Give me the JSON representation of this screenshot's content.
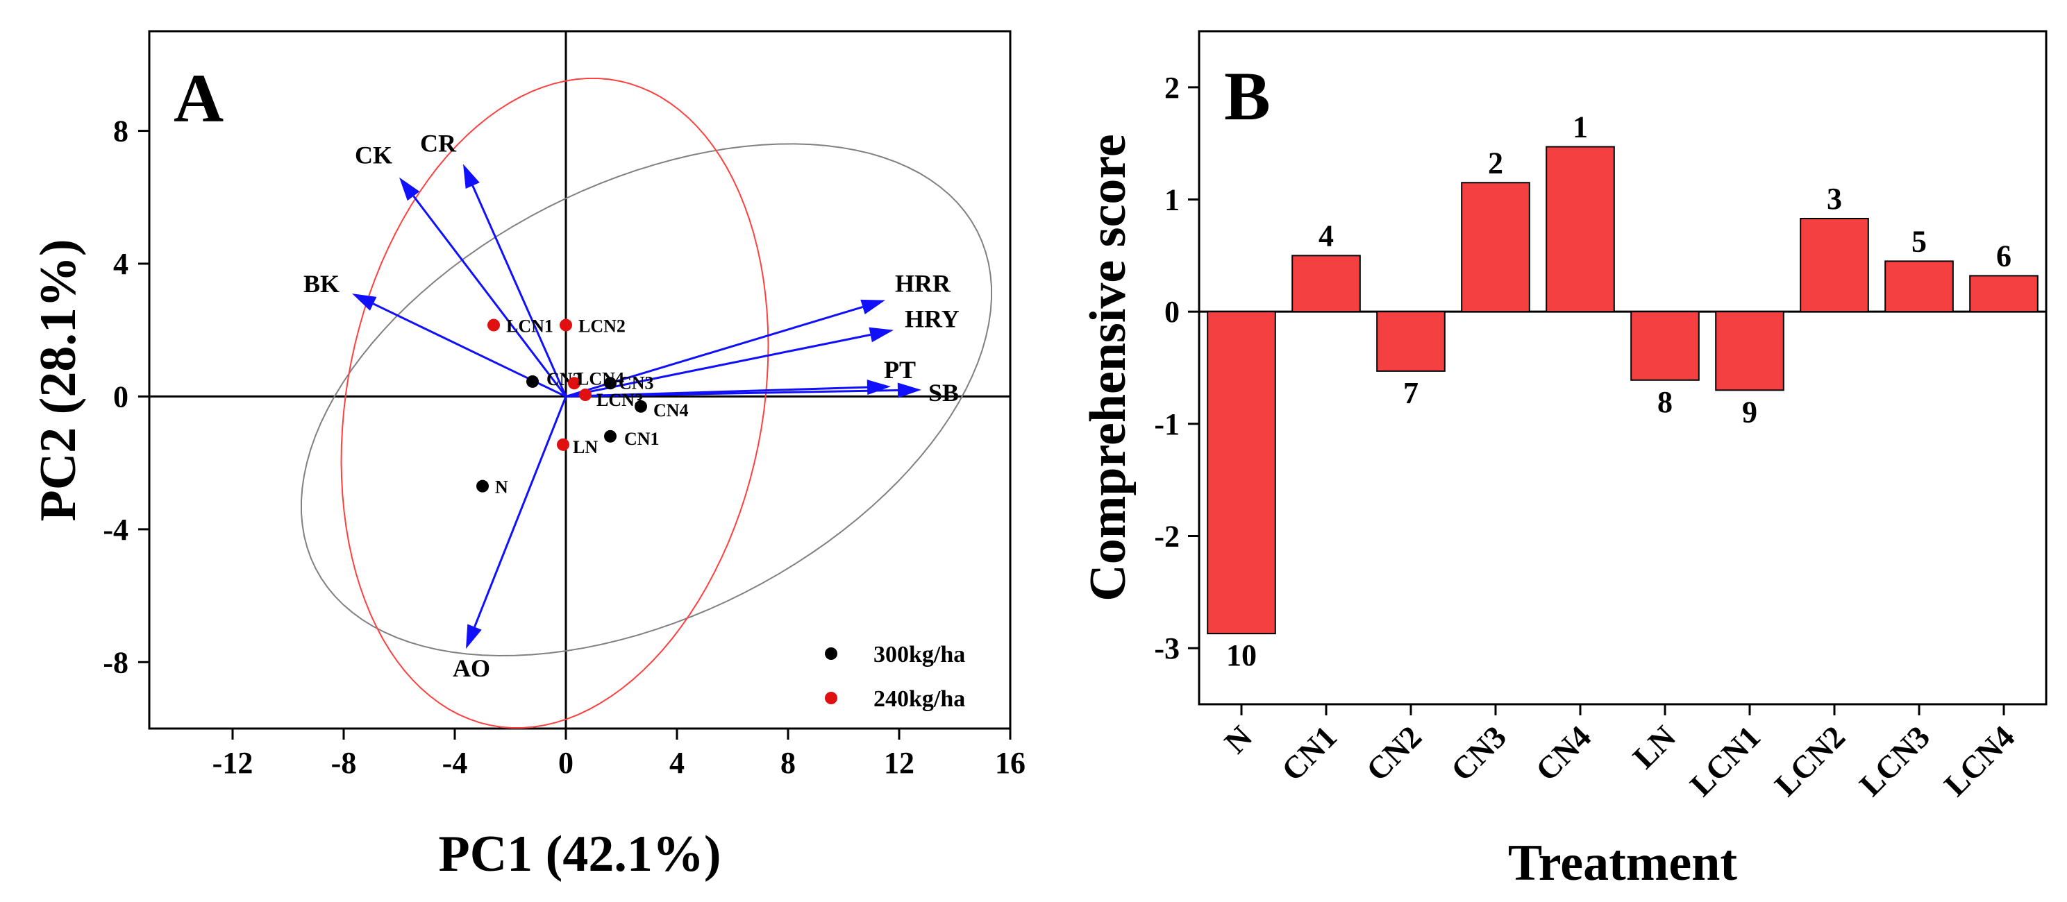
{
  "panel_a": {
    "letter": "A",
    "colors": {
      "arrow": "#1010ff",
      "ellipse_300": "#808080",
      "ellipse_240": "#ff4040",
      "dot_300": "#000000",
      "dot_240": "#e01010"
    },
    "legend": [
      {
        "label": "300kg/ha",
        "color": "#000000"
      },
      {
        "label": "240kg/ha",
        "color": "#e01010"
      }
    ]
  },
  "panel_b": {
    "letter": "B"
  },
  "chart_data": [
    {
      "type": "scatter",
      "subtype": "pca-biplot",
      "xlabel": "PC1 (42.1%)",
      "ylabel": "PC2 (28.1%)",
      "xlim": [
        -15,
        16
      ],
      "ylim": [
        -10,
        11
      ],
      "xticks": [
        -12,
        -8,
        -4,
        0,
        4,
        8,
        12,
        16
      ],
      "yticks": [
        -8,
        -4,
        0,
        4,
        8
      ],
      "tick_labels_x": [
        "-12",
        "-8",
        "-4",
        "0",
        "4",
        "8",
        "12",
        "16"
      ],
      "tick_labels_y": [
        "-8",
        "-4",
        "0",
        "4",
        "8"
      ],
      "loadings": [
        {
          "name": "CK",
          "x": -6.0,
          "y": 6.6
        },
        {
          "name": "CR",
          "x": -3.7,
          "y": 7.0
        },
        {
          "name": "BK",
          "x": -7.7,
          "y": 3.1
        },
        {
          "name": "HRR",
          "x": 11.5,
          "y": 2.9
        },
        {
          "name": "HRY",
          "x": 11.8,
          "y": 2.0
        },
        {
          "name": "PT",
          "x": 11.7,
          "y": 0.3
        },
        {
          "name": "SB",
          "x": 12.8,
          "y": 0.2
        },
        {
          "name": "AO",
          "x": -3.6,
          "y": -7.6
        }
      ],
      "series": [
        {
          "name": "300kg/ha",
          "points": [
            {
              "label": "N",
              "x": -3.0,
              "y": -2.7
            },
            {
              "label": "CN1",
              "x": 1.6,
              "y": -1.2
            },
            {
              "label": "CN2",
              "x": -1.2,
              "y": 0.45
            },
            {
              "label": "CN3",
              "x": 1.6,
              "y": 0.4
            },
            {
              "label": "CN4",
              "x": 2.7,
              "y": -0.3
            }
          ]
        },
        {
          "name": "240kg/ha",
          "points": [
            {
              "label": "LN",
              "x": -0.1,
              "y": -1.45
            },
            {
              "label": "LCN1",
              "x": -2.6,
              "y": 2.15
            },
            {
              "label": "LCN2",
              "x": 0.0,
              "y": 2.15
            },
            {
              "label": "LCN3",
              "x": 0.7,
              "y": 0.05
            },
            {
              "label": "LCN4",
              "x": 0.3,
              "y": 0.4
            }
          ]
        }
      ],
      "ellipses": [
        {
          "series": "300kg/ha",
          "cx": 2.9,
          "cy": -0.1,
          "rx": 13.0,
          "ry": 6.7,
          "angle_deg": 20
        },
        {
          "series": "240kg/ha",
          "cx": -0.4,
          "cy": -0.2,
          "rx": 10.0,
          "ry": 7.4,
          "angle_deg": 72
        }
      ]
    },
    {
      "type": "bar",
      "xlabel": "Treatment",
      "ylabel": "Comprehensive score",
      "ylim": [
        -3.5,
        2.5
      ],
      "yticks": [
        -3,
        -2,
        -1,
        0,
        1,
        2
      ],
      "tick_labels_y": [
        "-3",
        "-2",
        "-1",
        "0",
        "1",
        "2"
      ],
      "categories": [
        "N",
        "CN1",
        "CN2",
        "CN3",
        "CN4",
        "LN",
        "LCN1",
        "LCN2",
        "LCN3",
        "LCN4"
      ],
      "values": [
        -2.87,
        0.5,
        -0.53,
        1.15,
        1.47,
        -0.61,
        -0.7,
        0.83,
        0.45,
        0.32
      ],
      "rank_labels": [
        "10",
        "4",
        "7",
        "2",
        "1",
        "8",
        "9",
        "3",
        "5",
        "6"
      ],
      "bar_color": "#f44040"
    }
  ]
}
